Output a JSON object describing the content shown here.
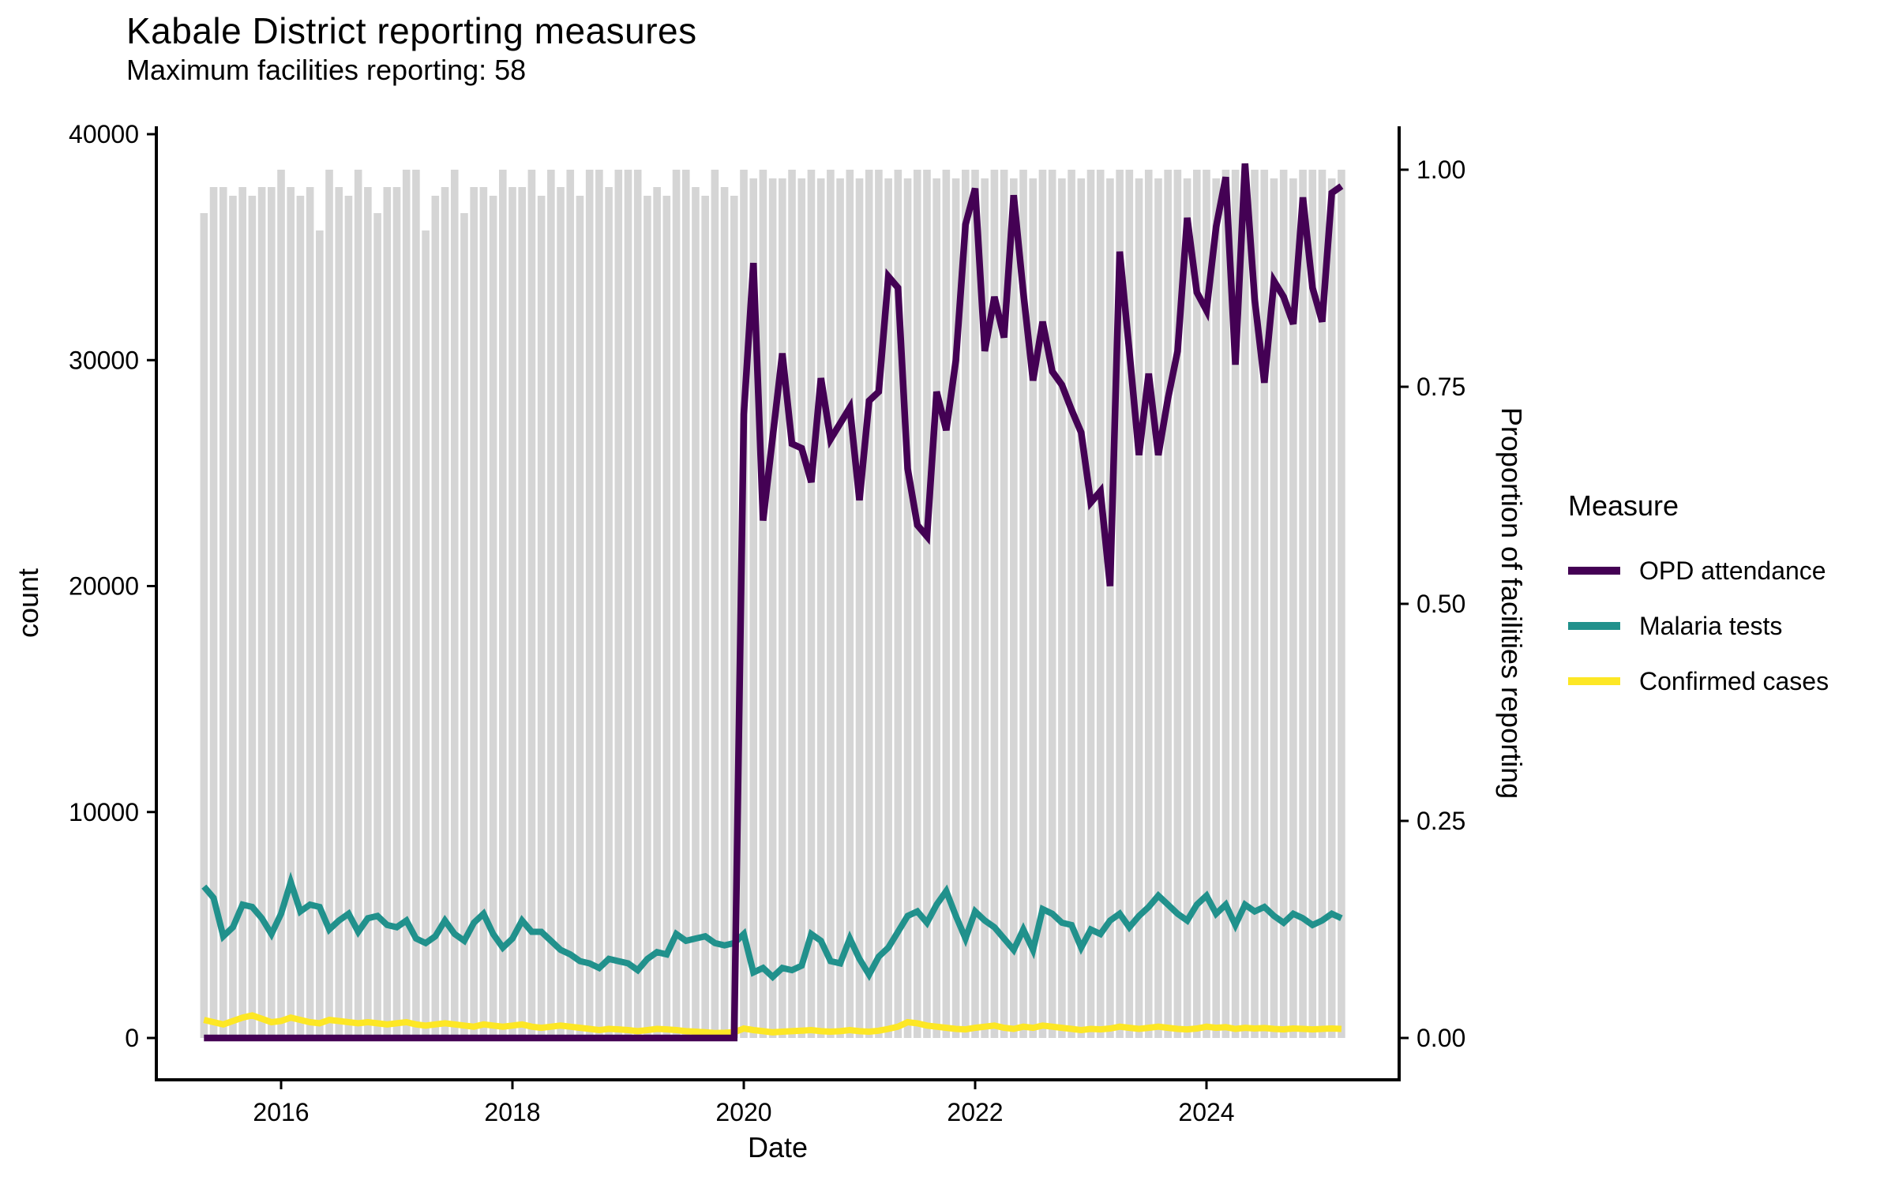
{
  "header": {
    "title": "Kabale District reporting measures",
    "subtitle": "Maximum facilities reporting: 58"
  },
  "colors": {
    "opd": "#440154",
    "malaria": "#21918C",
    "confirmed": "#FDE725",
    "bars": "#D5D5D5",
    "axis": "#000000",
    "text": "#000000",
    "background": "#FFFFFF"
  },
  "legend": {
    "title": "Measure",
    "items": [
      {
        "label": "OPD attendance",
        "color": "#440154"
      },
      {
        "label": "Malaria tests",
        "color": "#21918C"
      },
      {
        "label": "Confirmed cases",
        "color": "#FDE725"
      }
    ]
  },
  "chart_data": {
    "type": "line",
    "title": "Kabale District reporting measures",
    "subtitle": "Maximum facilities reporting: 58",
    "max_facilities": 58,
    "x": {
      "label": "Date",
      "start_month": "2015-05",
      "end_month": "2025-03",
      "tick_years": [
        2016,
        2018,
        2020,
        2022,
        2024
      ],
      "tick_labels": [
        "2016",
        "2018",
        "2020",
        "2022",
        "2024"
      ]
    },
    "y_left": {
      "label": "count",
      "ticks": [
        0,
        10000,
        20000,
        30000,
        40000
      ],
      "tick_labels": [
        "0",
        "10000",
        "20000",
        "30000",
        "40000"
      ],
      "range": [
        0,
        40000
      ]
    },
    "y_right": {
      "label": "Proportion of facilities reporting",
      "ticks": [
        0,
        0.25,
        0.5,
        0.75,
        1.0
      ],
      "tick_labels": [
        "0.00",
        "0.25",
        "0.50",
        "0.75",
        "1.00"
      ],
      "range": [
        0,
        1
      ]
    },
    "grid": false,
    "legend_position": "right",
    "bars": {
      "name": "Proportion of facilities reporting",
      "axis": "right",
      "color": "#D5D5D5",
      "values": [
        0.95,
        0.98,
        0.98,
        0.97,
        0.98,
        0.97,
        0.98,
        0.98,
        1.0,
        0.98,
        0.97,
        0.98,
        0.93,
        1.0,
        0.98,
        0.97,
        1.0,
        0.98,
        0.95,
        0.98,
        0.98,
        1.0,
        1.0,
        0.93,
        0.97,
        0.98,
        1.0,
        0.95,
        0.98,
        0.98,
        0.97,
        1.0,
        0.98,
        0.98,
        1.0,
        0.97,
        1.0,
        0.98,
        1.0,
        0.97,
        1.0,
        1.0,
        0.98,
        1.0,
        1.0,
        1.0,
        0.97,
        0.98,
        0.97,
        1.0,
        1.0,
        0.98,
        0.97,
        1.0,
        0.98,
        0.97,
        1.0,
        0.99,
        1.0,
        0.99,
        0.99,
        1.0,
        0.99,
        1.0,
        0.99,
        1.0,
        0.99,
        1.0,
        0.99,
        1.0,
        1.0,
        0.99,
        1.0,
        0.99,
        1.0,
        1.0,
        0.99,
        1.0,
        0.99,
        1.0,
        1.0,
        0.99,
        1.0,
        1.0,
        0.99,
        1.0,
        0.99,
        1.0,
        1.0,
        0.99,
        1.0,
        0.99,
        1.0,
        1.0,
        0.99,
        1.0,
        1.0,
        0.99,
        1.0,
        0.99,
        1.0,
        1.0,
        0.99,
        1.0,
        1.0,
        0.99,
        1.0,
        1.0,
        0.99,
        1.0,
        1.0,
        0.99,
        1.0,
        0.99,
        1.0,
        1.0,
        1.0,
        0.99,
        1.0
      ]
    },
    "series": [
      {
        "name": "OPD attendance",
        "axis": "left",
        "color": "#440154",
        "values": [
          0,
          0,
          0,
          0,
          0,
          0,
          0,
          0,
          0,
          0,
          0,
          0,
          0,
          0,
          0,
          0,
          0,
          0,
          0,
          0,
          0,
          0,
          0,
          0,
          0,
          0,
          0,
          0,
          0,
          0,
          0,
          0,
          0,
          0,
          0,
          0,
          0,
          0,
          0,
          0,
          0,
          0,
          0,
          0,
          0,
          0,
          0,
          0,
          0,
          0,
          0,
          0,
          0,
          0,
          0,
          0,
          27600,
          34300,
          22900,
          26600,
          30300,
          26300,
          26100,
          24600,
          29200,
          26500,
          27200,
          27900,
          23800,
          28200,
          28600,
          33700,
          33200,
          25200,
          22700,
          22200,
          28600,
          26900,
          30000,
          36000,
          37600,
          30400,
          32800,
          31000,
          37300,
          33000,
          29100,
          31700,
          29500,
          28900,
          27800,
          26800,
          23700,
          24200,
          20000,
          34800,
          30400,
          25800,
          29400,
          25800,
          28300,
          30400,
          36300,
          33000,
          32200,
          35900,
          38100,
          29800,
          38700,
          32700,
          29000,
          33500,
          32800,
          31600,
          37200,
          33200,
          31700,
          37400,
          37700
        ]
      },
      {
        "name": "Malaria tests",
        "axis": "left",
        "color": "#21918C",
        "values": [
          6700,
          6200,
          4500,
          4900,
          5900,
          5800,
          5300,
          4600,
          5500,
          6900,
          5600,
          5900,
          5800,
          4800,
          5200,
          5500,
          4700,
          5300,
          5400,
          5000,
          4900,
          5200,
          4400,
          4200,
          4500,
          5200,
          4600,
          4300,
          5100,
          5500,
          4600,
          4000,
          4400,
          5200,
          4700,
          4700,
          4300,
          3900,
          3700,
          3400,
          3300,
          3100,
          3500,
          3400,
          3300,
          3000,
          3500,
          3800,
          3700,
          4600,
          4300,
          4400,
          4500,
          4200,
          4100,
          4200,
          4600,
          2900,
          3100,
          2700,
          3100,
          3000,
          3200,
          4600,
          4300,
          3400,
          3300,
          4400,
          3500,
          2800,
          3600,
          4000,
          4700,
          5400,
          5600,
          5100,
          5900,
          6500,
          5400,
          4400,
          5600,
          5200,
          4900,
          4400,
          3900,
          4800,
          3900,
          5700,
          5500,
          5100,
          5000,
          4000,
          4800,
          4600,
          5200,
          5500,
          4900,
          5400,
          5800,
          6300,
          5900,
          5500,
          5200,
          5900,
          6300,
          5500,
          5900,
          5000,
          5900,
          5600,
          5800,
          5400,
          5100,
          5500,
          5300,
          5000,
          5200,
          5500,
          5300
        ]
      },
      {
        "name": "Confirmed cases",
        "axis": "left",
        "color": "#FDE725",
        "values": [
          800,
          700,
          600,
          750,
          900,
          1000,
          850,
          700,
          750,
          900,
          800,
          700,
          650,
          800,
          750,
          700,
          650,
          700,
          650,
          600,
          650,
          700,
          600,
          550,
          600,
          650,
          600,
          550,
          500,
          600,
          550,
          500,
          550,
          600,
          500,
          450,
          500,
          550,
          500,
          450,
          400,
          350,
          400,
          380,
          350,
          300,
          350,
          400,
          380,
          350,
          300,
          280,
          250,
          220,
          230,
          250,
          420,
          350,
          300,
          250,
          280,
          300,
          320,
          350,
          300,
          280,
          300,
          350,
          300,
          280,
          320,
          400,
          500,
          700,
          650,
          550,
          500,
          450,
          400,
          380,
          450,
          500,
          550,
          450,
          400,
          500,
          450,
          550,
          500,
          450,
          400,
          350,
          400,
          380,
          420,
          500,
          450,
          400,
          450,
          500,
          450,
          400,
          380,
          420,
          500,
          450,
          480,
          400,
          450,
          420,
          440,
          400,
          380,
          420,
          400,
          380,
          400,
          420,
          400
        ]
      }
    ]
  }
}
